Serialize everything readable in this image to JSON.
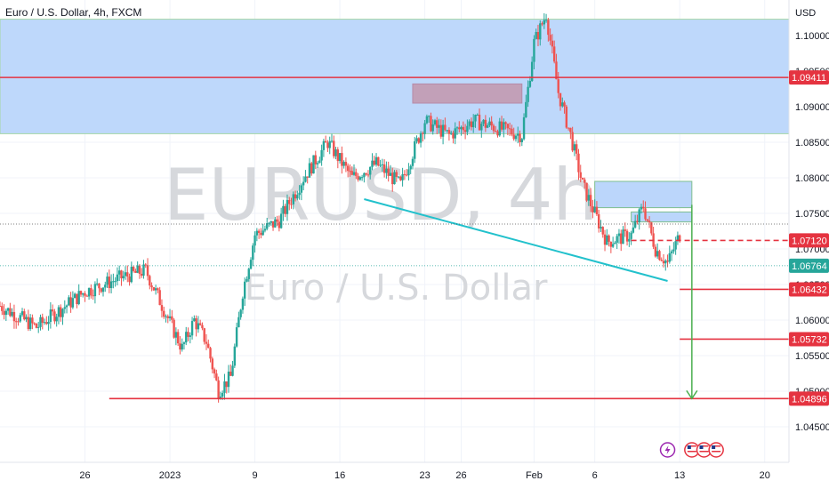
{
  "header": {
    "symbol_title": "Euro / U.S. Dollar, 4h, FXCM"
  },
  "watermark": {
    "ticker": "EURUSD, 4h",
    "name": "Euro / U.S. Dollar"
  },
  "colors": {
    "up": "#26a69a",
    "down": "#ef5350",
    "zone": "#bbd6fb",
    "zone_border": "#a5d6a7",
    "supply": "#c2a0b8",
    "trend": "#22c1cc",
    "level": "#e53340",
    "target": "#4caf50"
  },
  "chart_data": {
    "type": "candlestick",
    "currency": "USD",
    "y_ticks": [
      {
        "value": 1.1,
        "label": "1.10000"
      },
      {
        "value": 1.095,
        "label": "1.09500"
      },
      {
        "value": 1.09,
        "label": "1.09000"
      },
      {
        "value": 1.085,
        "label": "1.08500"
      },
      {
        "value": 1.08,
        "label": "1.08000"
      },
      {
        "value": 1.075,
        "label": "1.07500"
      },
      {
        "value": 1.07,
        "label": "1.07000"
      },
      {
        "value": 1.065,
        "label": "1.06500"
      },
      {
        "value": 1.06,
        "label": "1.06000"
      },
      {
        "value": 1.055,
        "label": "1.05500"
      },
      {
        "value": 1.05,
        "label": "1.05000"
      },
      {
        "value": 1.045,
        "label": "1.04500"
      }
    ],
    "x_ticks": [
      {
        "date": "2022-12-26",
        "label": "26"
      },
      {
        "date": "2023-01-02",
        "label": "2023"
      },
      {
        "date": "2023-01-09",
        "label": "9"
      },
      {
        "date": "2023-01-16",
        "label": "16"
      },
      {
        "date": "2023-01-23",
        "label": "23"
      },
      {
        "date": "2023-01-26",
        "label": "26"
      },
      {
        "date": "2023-02-01",
        "label": "Feb"
      },
      {
        "date": "2023-02-06",
        "label": "6"
      },
      {
        "date": "2023-02-13",
        "label": "13"
      },
      {
        "date": "2023-02-20",
        "label": "20"
      }
    ],
    "price_labels": [
      {
        "value": 1.09411,
        "label": "1.09411",
        "color": "#e53340"
      },
      {
        "value": 1.0712,
        "label": "1.07120",
        "color": "#e53340"
      },
      {
        "value": 1.06764,
        "label": "1.06764",
        "color": "#26a69a"
      },
      {
        "value": 1.06432,
        "label": "1.06432",
        "color": "#e53340"
      },
      {
        "value": 1.05732,
        "label": "1.05732",
        "color": "#e53340"
      },
      {
        "value": 1.04896,
        "label": "1.04896",
        "color": "#e53340"
      }
    ],
    "zones": [
      {
        "name": "upper-resistance",
        "x_from": "2022-12-19",
        "x_to": "2023-02-22",
        "y_from": 1.0862,
        "y_to": 1.1023
      },
      {
        "name": "supply-box",
        "x_from": "2023-01-22",
        "x_to": "2023-01-31",
        "y_from": 1.0905,
        "y_to": 1.0932
      },
      {
        "name": "demand-box-upper",
        "x_from": "2023-02-06",
        "x_to": "2023-02-14",
        "y_from": 1.0758,
        "y_to": 1.0795
      },
      {
        "name": "demand-box-lower",
        "x_from": "2023-02-09",
        "x_to": "2023-02-14",
        "y_from": 1.0738,
        "y_to": 1.0752
      }
    ],
    "lines": [
      {
        "name": "trendline",
        "x1": "2023-01-18",
        "y1": 1.077,
        "x2": "2023-02-12",
        "y2": 1.0655
      },
      {
        "name": "red-level-1.09411",
        "x1": "2022-12-19",
        "y1": 1.09411,
        "x2": "2023-02-22",
        "y2": 1.09411
      },
      {
        "name": "red-level-1.04896",
        "x1": "2022-12-28",
        "y1": 1.04896,
        "x2": "2023-02-22",
        "y2": 1.04896
      },
      {
        "name": "dashed-1.07120",
        "x1": "2023-02-09",
        "y1": 1.0712,
        "x2": "2023-02-22",
        "y2": 1.0712
      },
      {
        "name": "tp-1.06432",
        "x1": "2023-02-13",
        "y1": 1.06432,
        "x2": "2023-02-22",
        "y2": 1.06432
      },
      {
        "name": "tp-1.05732",
        "x1": "2023-02-13",
        "y1": 1.05732,
        "x2": "2023-02-22",
        "y2": 1.05732
      }
    ],
    "target_arrow": {
      "x": "2023-02-14",
      "y_from": 1.0762,
      "y_to": 1.04896
    },
    "path_anchors": [
      {
        "date": "2022-12-19",
        "close": 1.062
      },
      {
        "date": "2022-12-20",
        "close": 1.061
      },
      {
        "date": "2022-12-22",
        "close": 1.059
      },
      {
        "date": "2022-12-26",
        "close": 1.064
      },
      {
        "date": "2022-12-29",
        "close": 1.066
      },
      {
        "date": "2022-12-31",
        "close": 1.067
      },
      {
        "date": "2023-01-03",
        "close": 1.056
      },
      {
        "date": "2023-01-04",
        "close": 1.06
      },
      {
        "date": "2023-01-05",
        "close": 1.057
      },
      {
        "date": "2023-01-06",
        "close": 1.05
      },
      {
        "date": "2023-01-07",
        "close": 1.052
      },
      {
        "date": "2023-01-08",
        "close": 1.064
      },
      {
        "date": "2023-01-09",
        "close": 1.072
      },
      {
        "date": "2023-01-11",
        "close": 1.074
      },
      {
        "date": "2023-01-13",
        "close": 1.08
      },
      {
        "date": "2023-01-15",
        "close": 1.085
      },
      {
        "date": "2023-01-17",
        "close": 1.08
      },
      {
        "date": "2023-01-19",
        "close": 1.082
      },
      {
        "date": "2023-01-21",
        "close": 1.079
      },
      {
        "date": "2023-01-23",
        "close": 1.088
      },
      {
        "date": "2023-01-25",
        "close": 1.086
      },
      {
        "date": "2023-01-27",
        "close": 1.088
      },
      {
        "date": "2023-01-29",
        "close": 1.087
      },
      {
        "date": "2023-01-31",
        "close": 1.086
      },
      {
        "date": "2023-02-01",
        "close": 1.099
      },
      {
        "date": "2023-02-02",
        "close": 1.103
      },
      {
        "date": "2023-02-03",
        "close": 1.092
      },
      {
        "date": "2023-02-04",
        "close": 1.086
      },
      {
        "date": "2023-02-05",
        "close": 1.079
      },
      {
        "date": "2023-02-07",
        "close": 1.071
      },
      {
        "date": "2023-02-09",
        "close": 1.072
      },
      {
        "date": "2023-02-10",
        "close": 1.076
      },
      {
        "date": "2023-02-11",
        "close": 1.07
      },
      {
        "date": "2023-02-12",
        "close": 1.068
      },
      {
        "date": "2023-02-13",
        "close": 1.072
      }
    ],
    "ylim": [
      1.04,
      1.105
    ],
    "xlim": [
      "2022-12-19",
      "2023-02-22"
    ]
  },
  "events": [
    {
      "date": "2023-02-12",
      "icon": "lightning-icon"
    },
    {
      "date": "2023-02-14",
      "icon": "us-flag-icon"
    },
    {
      "date": "2023-02-15",
      "icon": "us-flag-icon"
    },
    {
      "date": "2023-02-16",
      "icon": "us-flag-icon"
    }
  ]
}
